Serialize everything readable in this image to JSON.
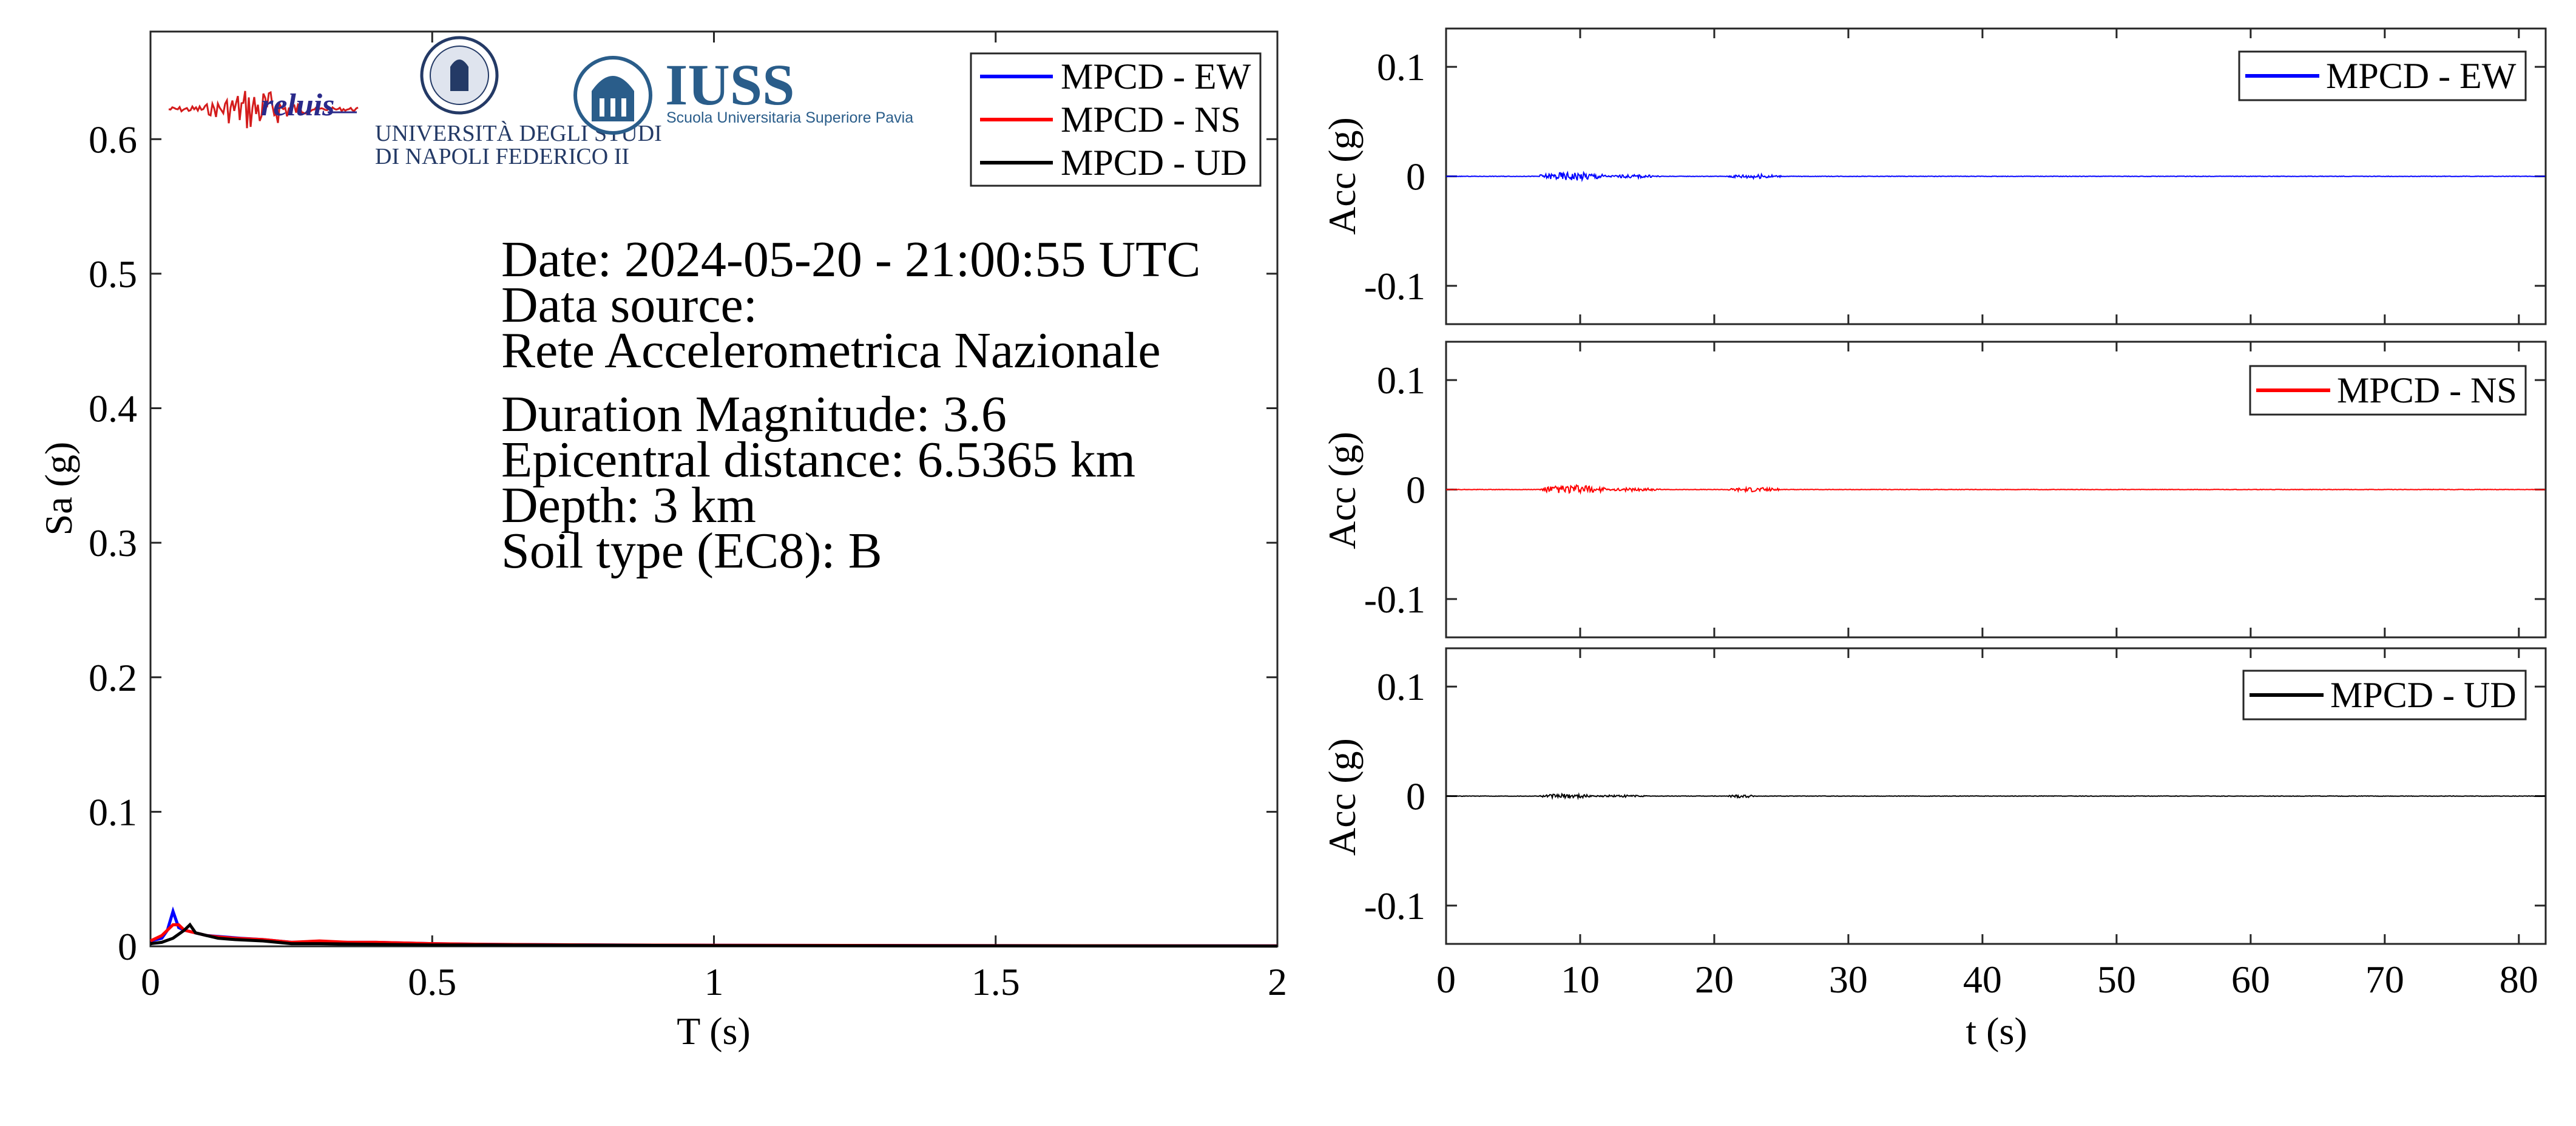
{
  "chart_data": [
    {
      "type": "line",
      "xlabel": "T (s)",
      "ylabel": "Sa (g)",
      "xlim": [
        0,
        2
      ],
      "ylim": [
        0,
        0.68
      ],
      "xticks": [
        0,
        0.5,
        1,
        1.5,
        2
      ],
      "xtick_labels": [
        "0",
        "0.5",
        "1",
        "1.5",
        "2"
      ],
      "yticks": [
        0,
        0.1,
        0.2,
        0.3,
        0.4,
        0.5,
        0.6
      ],
      "ytick_labels": [
        "0",
        "0.1",
        "0.2",
        "0.3",
        "0.4",
        "0.5",
        "0.6"
      ],
      "legend_position": "top-right",
      "grid": false,
      "series": [
        {
          "name": "MPCD - EW",
          "color": "#0000ff",
          "x": [
            0,
            0.02,
            0.03,
            0.04,
            0.05,
            0.06,
            0.08,
            0.1,
            0.13,
            0.16,
            0.2,
            0.25,
            0.3,
            0.35,
            0.4,
            0.5,
            0.6,
            0.8,
            1.0,
            1.5,
            2.0
          ],
          "y": [
            0.004,
            0.006,
            0.012,
            0.026,
            0.014,
            0.012,
            0.01,
            0.008,
            0.007,
            0.006,
            0.005,
            0.003,
            0.003,
            0.003,
            0.003,
            0.002,
            0.0015,
            0.001,
            0.0008,
            0.0005,
            0.0003
          ]
        },
        {
          "name": "MPCD - NS",
          "color": "#ff0000",
          "x": [
            0,
            0.02,
            0.04,
            0.05,
            0.06,
            0.08,
            0.1,
            0.12,
            0.15,
            0.2,
            0.25,
            0.3,
            0.35,
            0.4,
            0.5,
            0.6,
            0.8,
            1.0,
            1.5,
            2.0
          ],
          "y": [
            0.004,
            0.008,
            0.016,
            0.016,
            0.012,
            0.01,
            0.008,
            0.007,
            0.006,
            0.005,
            0.003,
            0.004,
            0.003,
            0.003,
            0.002,
            0.0015,
            0.001,
            0.0008,
            0.0005,
            0.0003
          ]
        },
        {
          "name": "MPCD - UD",
          "color": "#000000",
          "x": [
            0,
            0.02,
            0.04,
            0.06,
            0.07,
            0.08,
            0.1,
            0.12,
            0.15,
            0.2,
            0.25,
            0.3,
            0.4,
            0.5,
            0.6,
            0.8,
            1.0,
            1.5,
            2.0
          ],
          "y": [
            0.002,
            0.003,
            0.006,
            0.012,
            0.016,
            0.01,
            0.008,
            0.006,
            0.005,
            0.004,
            0.002,
            0.002,
            0.0015,
            0.001,
            0.001,
            0.0008,
            0.0005,
            0.0003,
            0.0002
          ]
        }
      ]
    },
    {
      "type": "line",
      "ylabel": "Acc (g)",
      "xlim": [
        0,
        82
      ],
      "ylim": [
        -0.135,
        0.135
      ],
      "yticks": [
        -0.1,
        0,
        0.1
      ],
      "ytick_labels": [
        "-0.1",
        "0",
        "0.1"
      ],
      "legend_position": "top-right",
      "series": [
        {
          "name": "MPCD - EW",
          "color": "#0000ff",
          "bursts": [
            {
              "t0": 7,
              "t1": 12,
              "amp": 0.004
            },
            {
              "t0": 12,
              "t1": 16,
              "amp": 0.0015
            },
            {
              "t0": 21,
              "t1": 25,
              "amp": 0.002
            }
          ]
        }
      ]
    },
    {
      "type": "line",
      "ylabel": "Acc (g)",
      "xlim": [
        0,
        82
      ],
      "ylim": [
        -0.135,
        0.135
      ],
      "yticks": [
        -0.1,
        0,
        0.1
      ],
      "ytick_labels": [
        "-0.1",
        "0",
        "0.1"
      ],
      "legend_position": "top-right",
      "series": [
        {
          "name": "MPCD - NS",
          "color": "#ff0000",
          "bursts": [
            {
              "t0": 7,
              "t1": 12,
              "amp": 0.004
            },
            {
              "t0": 12,
              "t1": 16,
              "amp": 0.0015
            },
            {
              "t0": 21,
              "t1": 25,
              "amp": 0.002
            }
          ]
        }
      ]
    },
    {
      "type": "line",
      "xlabel": "t (s)",
      "ylabel": "Acc (g)",
      "xlim": [
        0,
        82
      ],
      "ylim": [
        -0.135,
        0.135
      ],
      "xticks": [
        0,
        10,
        20,
        30,
        40,
        50,
        60,
        70,
        80
      ],
      "xtick_labels": [
        "0",
        "10",
        "20",
        "30",
        "40",
        "50",
        "60",
        "70",
        "80"
      ],
      "yticks": [
        -0.1,
        0,
        0.1
      ],
      "ytick_labels": [
        "-0.1",
        "0",
        "0.1"
      ],
      "legend_position": "top-right",
      "series": [
        {
          "name": "MPCD - UD",
          "color": "#000000",
          "bursts": [
            {
              "t0": 7,
              "t1": 11,
              "amp": 0.002
            },
            {
              "t0": 11,
              "t1": 15,
              "amp": 0.001
            },
            {
              "t0": 21,
              "t1": 23,
              "amp": 0.0015
            }
          ]
        }
      ]
    }
  ],
  "annotation": {
    "date": "Date: 2024-05-20 - 21:00:55 UTC",
    "source_label": "Data source:",
    "source": "Rete Accelerometrica Nazionale",
    "magnitude": "Duration Magnitude: 3.6",
    "distance": "Epicentral distance: 6.5365 km",
    "depth": "Depth: 3 km",
    "soil": "Soil type (EC8): B"
  },
  "logos": {
    "reluis": "reluis",
    "unina_line1": "UNIVERSITÀ DEGLI STUDI",
    "unina_line2": "DI NAPOLI FEDERICO II",
    "iuss": "IUSS",
    "iuss_sub": "Scuola Universitaria Superiore Pavia"
  }
}
